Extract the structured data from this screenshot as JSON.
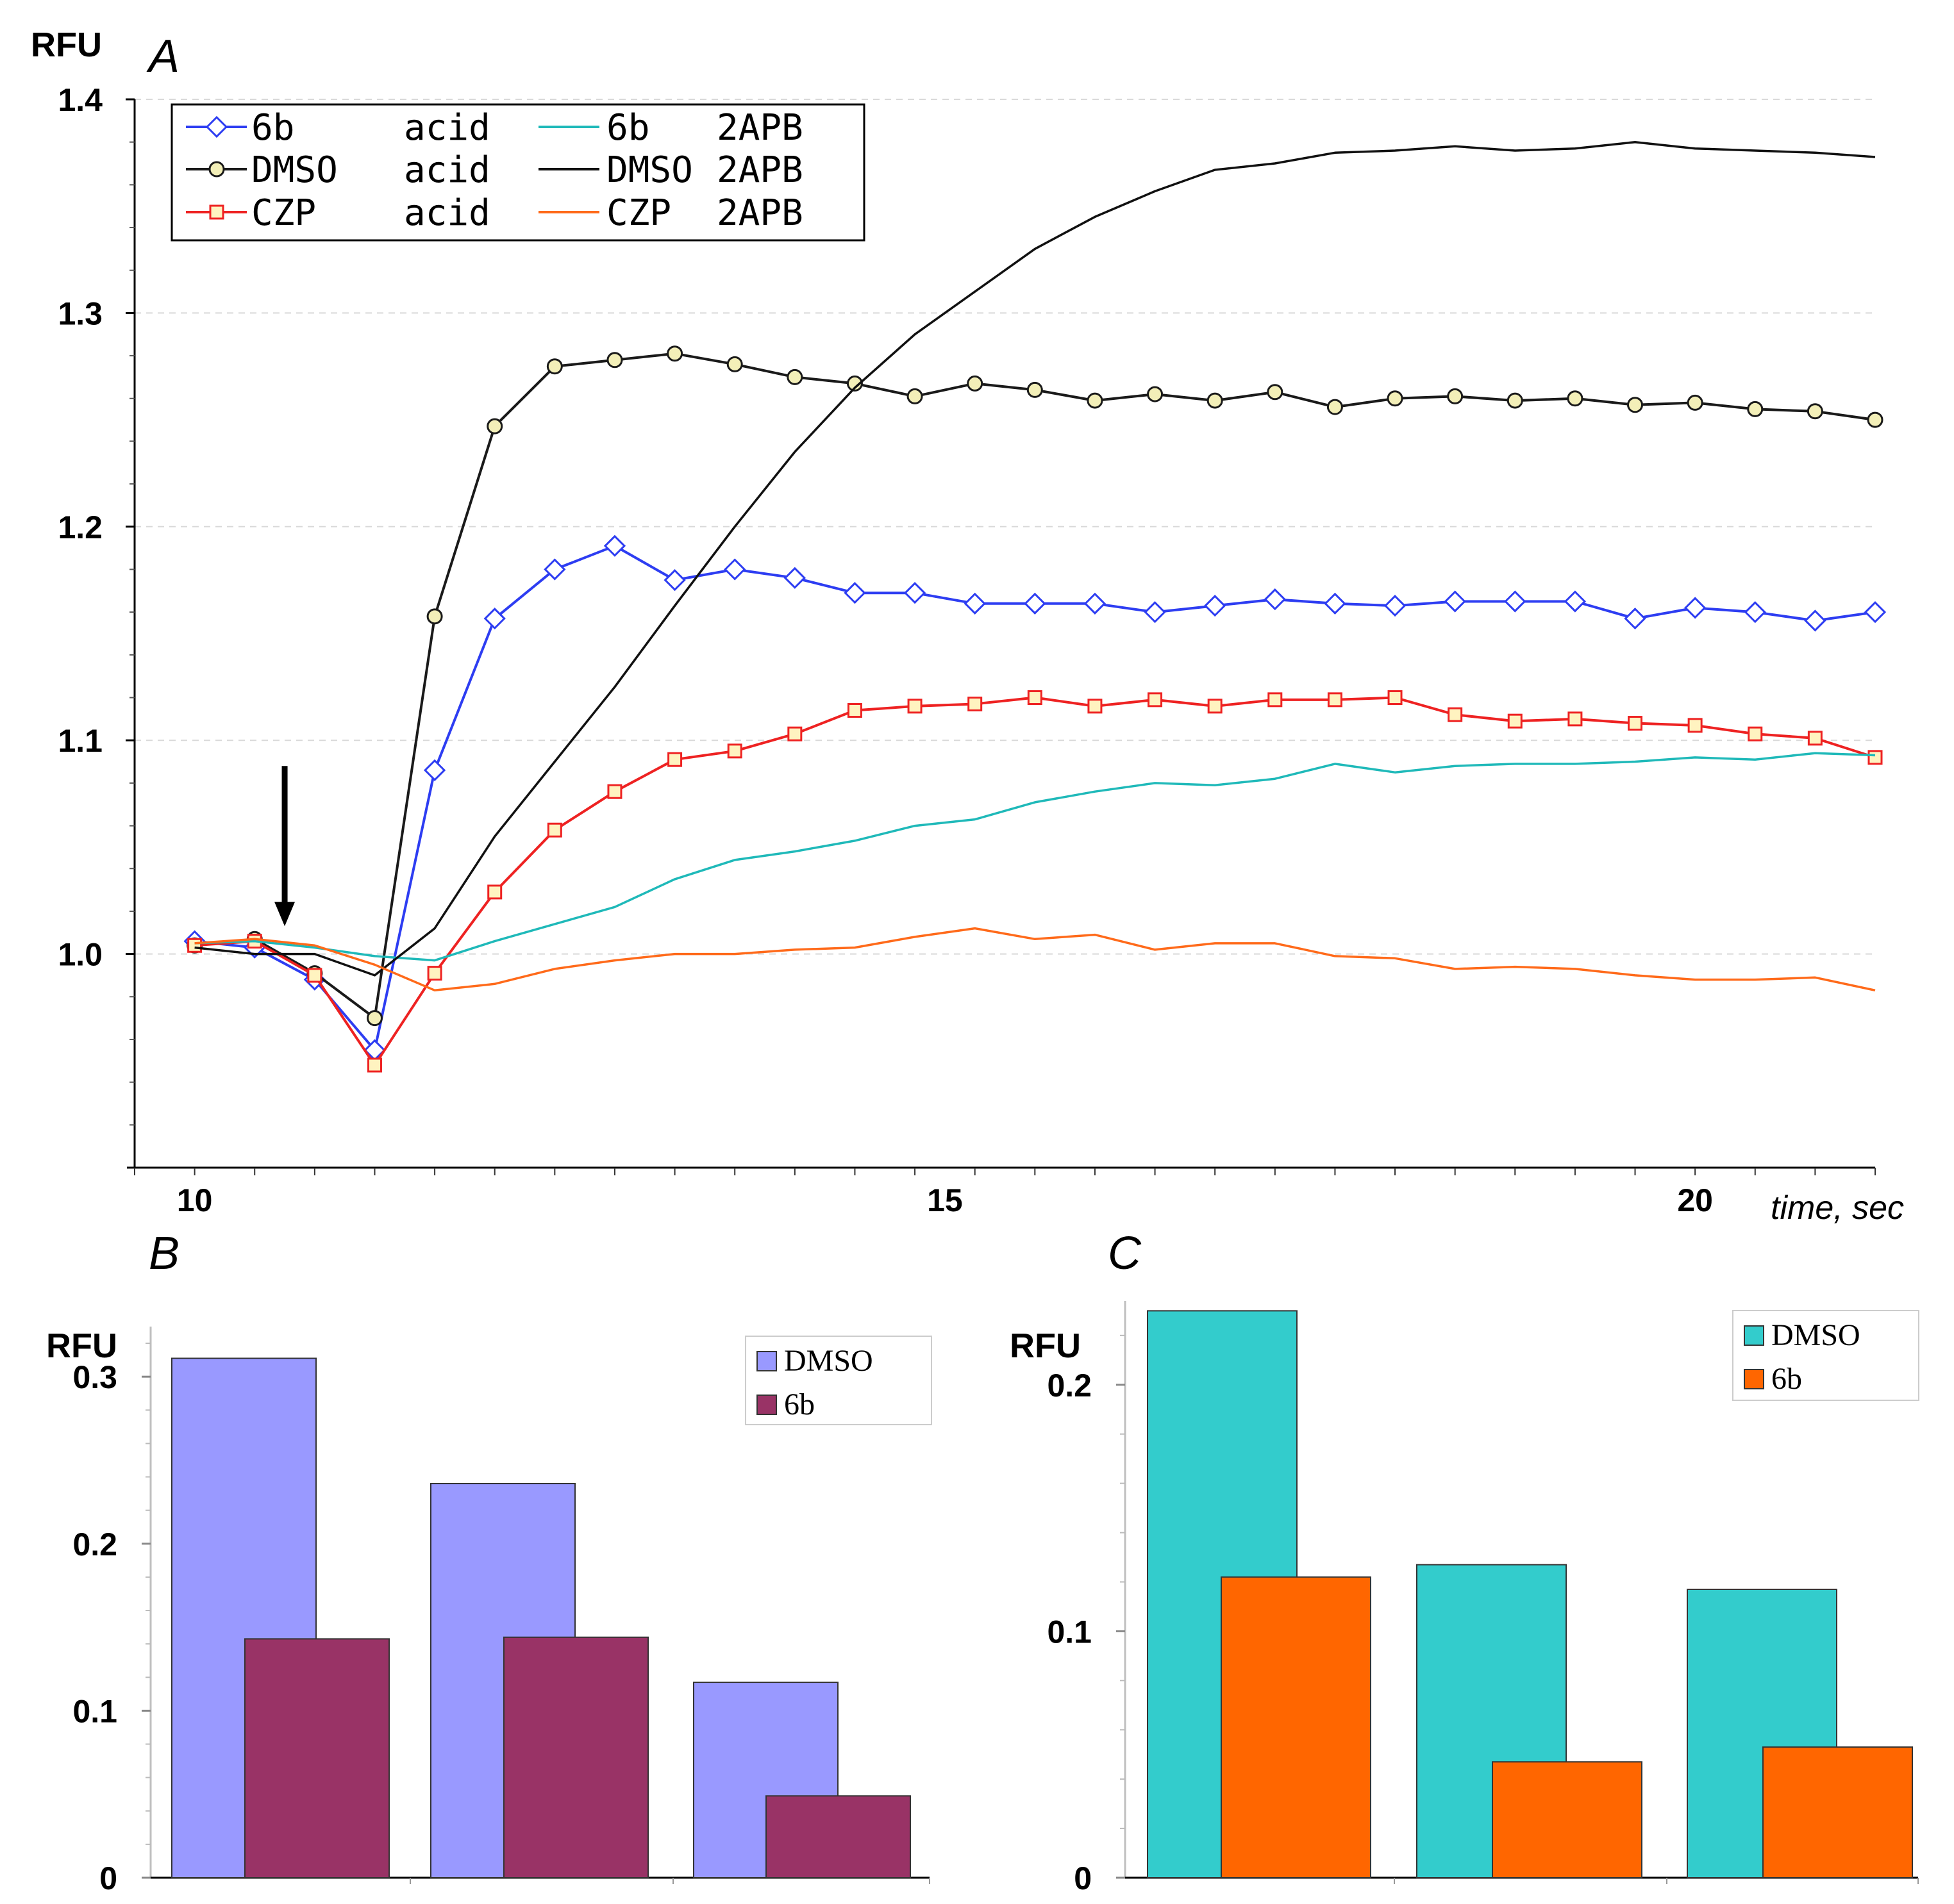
{
  "figure_labels": {
    "a": "A",
    "b": "B",
    "c": "C"
  },
  "chart_data": [
    {
      "panel": "A",
      "type": "line",
      "ylabel": "RFU",
      "xlabel": "time, sec",
      "ylim": [
        0.9,
        1.4
      ],
      "xlim": [
        9.6,
        21.2
      ],
      "yticks": [
        "1.0",
        "1.1",
        "1.2",
        "1.3",
        "1.4"
      ],
      "ytick_values": [
        1.0,
        1.1,
        1.2,
        1.3,
        1.4
      ],
      "xticks": [
        "10",
        "15",
        "20"
      ],
      "xtick_values": [
        10,
        15,
        20
      ],
      "grid": true,
      "legend_position": "top-left",
      "legend": [
        {
          "name": "6b",
          "cond": "acid",
          "color": "#2d3df2",
          "marker": "diamond"
        },
        {
          "name": "DMSO",
          "cond": "acid",
          "color": "#1a1a1a",
          "marker": "circle"
        },
        {
          "name": "CZP",
          "cond": "acid",
          "color": "#ee2222",
          "marker": "square"
        },
        {
          "name": "6b",
          "cond": "2APB",
          "color": "#1fb9b9",
          "marker": "none"
        },
        {
          "name": "DMSO",
          "cond": "2APB",
          "color": "#111111",
          "marker": "none"
        },
        {
          "name": "CZP",
          "cond": "2APB",
          "color": "#ff6a1a",
          "marker": "none"
        }
      ],
      "series": [
        {
          "name": "6b acid",
          "color": "#2d3df2",
          "marker": "diamond",
          "markerFill": "#ffffff",
          "x": [
            10,
            10.4,
            10.8,
            11.2,
            11.6,
            12.0,
            12.4,
            12.8,
            13.2,
            13.6,
            14.0,
            14.4,
            14.8,
            15.2,
            15.6,
            16.0,
            16.4,
            16.8,
            17.2,
            17.6,
            18.0,
            18.4,
            18.8,
            19.2,
            19.6,
            20.0,
            20.4,
            20.8,
            21.2
          ],
          "y": [
            1.006,
            1.003,
            0.988,
            0.955,
            1.086,
            1.157,
            1.18,
            1.191,
            1.175,
            1.18,
            1.176,
            1.169,
            1.169,
            1.164,
            1.164,
            1.164,
            1.16,
            1.163,
            1.166,
            1.164,
            1.163,
            1.165,
            1.165,
            1.165,
            1.157,
            1.162,
            1.16,
            1.156,
            1.16
          ]
        },
        {
          "name": "DMSO acid",
          "color": "#1a1a1a",
          "marker": "circle",
          "markerFill": "#f3efb8",
          "x": [
            10,
            10.4,
            10.8,
            11.2,
            11.6,
            12.0,
            12.4,
            12.8,
            13.2,
            13.6,
            14.0,
            14.4,
            14.8,
            15.2,
            15.6,
            16.0,
            16.4,
            16.8,
            17.2,
            17.6,
            18.0,
            18.4,
            18.8,
            19.2,
            19.6,
            20.0,
            20.4,
            20.8,
            21.2
          ],
          "y": [
            1.004,
            1.007,
            0.991,
            0.97,
            1.158,
            1.247,
            1.275,
            1.278,
            1.281,
            1.276,
            1.27,
            1.267,
            1.261,
            1.267,
            1.264,
            1.259,
            1.262,
            1.259,
            1.263,
            1.256,
            1.26,
            1.261,
            1.259,
            1.26,
            1.257,
            1.258,
            1.255,
            1.254,
            1.25
          ]
        },
        {
          "name": "CZP acid",
          "color": "#ee2222",
          "marker": "square",
          "markerFill": "#fff3c0",
          "x": [
            10,
            10.4,
            10.8,
            11.2,
            11.6,
            12.0,
            12.4,
            12.8,
            13.2,
            13.6,
            14.0,
            14.4,
            14.8,
            15.2,
            15.6,
            16.0,
            16.4,
            16.8,
            17.2,
            17.6,
            18.0,
            18.4,
            18.8,
            19.2,
            19.6,
            20.0,
            20.4,
            20.8,
            21.2
          ],
          "y": [
            1.004,
            1.006,
            0.99,
            0.948,
            0.991,
            1.029,
            1.058,
            1.076,
            1.091,
            1.095,
            1.103,
            1.114,
            1.116,
            1.117,
            1.12,
            1.116,
            1.119,
            1.116,
            1.119,
            1.119,
            1.12,
            1.112,
            1.109,
            1.11,
            1.108,
            1.107,
            1.103,
            1.101,
            1.092
          ]
        },
        {
          "name": "6b 2APB",
          "color": "#1fb9b9",
          "marker": "none",
          "x": [
            10,
            10.4,
            10.8,
            11.2,
            11.6,
            12.0,
            12.4,
            12.8,
            13.2,
            13.6,
            14.0,
            14.4,
            14.8,
            15.2,
            15.6,
            16.0,
            16.4,
            16.8,
            17.2,
            17.6,
            18.0,
            18.4,
            18.8,
            19.2,
            19.6,
            20.0,
            20.4,
            20.8,
            21.2
          ],
          "y": [
            1.005,
            1.006,
            1.003,
            0.999,
            0.997,
            1.006,
            1.014,
            1.022,
            1.035,
            1.044,
            1.048,
            1.053,
            1.06,
            1.063,
            1.071,
            1.076,
            1.08,
            1.079,
            1.082,
            1.089,
            1.085,
            1.088,
            1.089,
            1.089,
            1.09,
            1.092,
            1.091,
            1.094,
            1.093
          ]
        },
        {
          "name": "DMSO 2APB",
          "color": "#111111",
          "marker": "none",
          "x": [
            10,
            10.4,
            10.8,
            11.2,
            11.6,
            12.0,
            12.4,
            12.8,
            13.2,
            13.6,
            14.0,
            14.4,
            14.8,
            15.2,
            15.6,
            16.0,
            16.4,
            16.8,
            17.2,
            17.6,
            18.0,
            18.4,
            18.8,
            19.2,
            19.6,
            20.0,
            20.4,
            20.8,
            21.2
          ],
          "y": [
            1.003,
            1.0,
            1.0,
            0.99,
            1.012,
            1.055,
            1.09,
            1.125,
            1.163,
            1.2,
            1.235,
            1.265,
            1.29,
            1.31,
            1.33,
            1.345,
            1.357,
            1.367,
            1.37,
            1.375,
            1.376,
            1.378,
            1.376,
            1.377,
            1.38,
            1.377,
            1.376,
            1.375,
            1.373
          ]
        },
        {
          "name": "CZP 2APB",
          "color": "#ff6a1a",
          "marker": "none",
          "x": [
            10,
            10.4,
            10.8,
            11.2,
            11.6,
            12.0,
            12.4,
            12.8,
            13.2,
            13.6,
            14.0,
            14.4,
            14.8,
            15.2,
            15.6,
            16.0,
            16.4,
            16.8,
            17.2,
            17.6,
            18.0,
            18.4,
            18.8,
            19.2,
            19.6,
            20.0,
            20.4,
            20.8,
            21.2
          ],
          "y": [
            1.005,
            1.007,
            1.004,
            0.995,
            0.983,
            0.986,
            0.993,
            0.997,
            1.0,
            1.0,
            1.002,
            1.003,
            1.008,
            1.012,
            1.007,
            1.009,
            1.002,
            1.005,
            1.005,
            0.999,
            0.998,
            0.993,
            0.994,
            0.993,
            0.99,
            0.988,
            0.988,
            0.989,
            0.983
          ]
        }
      ],
      "annotation": {
        "type": "arrow",
        "x": 10.6,
        "y_from": 1.088,
        "y_to": 1.013,
        "direction": "down"
      }
    },
    {
      "panel": "B",
      "type": "bar",
      "ylabel": "RFU",
      "ylim": [
        0,
        0.33
      ],
      "yticks": [
        "0",
        "0.1",
        "0.2",
        "0.3"
      ],
      "ytick_values": [
        0,
        0.1,
        0.2,
        0.3
      ],
      "categories": [
        "",
        "",
        ""
      ],
      "legend_position": "top-right",
      "series": [
        {
          "name": "DMSO",
          "color": "#9999ff",
          "values": [
            0.311,
            0.236,
            0.117
          ]
        },
        {
          "name": "6b",
          "color": "#993366",
          "values": [
            0.143,
            0.144,
            0.049
          ]
        }
      ]
    },
    {
      "panel": "C",
      "type": "bar",
      "ylabel": "RFU",
      "ylim": [
        0,
        0.234
      ],
      "yticks": [
        "0",
        "0.1",
        "0.2"
      ],
      "ytick_values": [
        0,
        0.1,
        0.2
      ],
      "categories": [
        "",
        "",
        ""
      ],
      "legend_position": "top-right",
      "series": [
        {
          "name": "DMSO",
          "color": "#33cccc",
          "values": [
            0.23,
            0.127,
            0.117
          ]
        },
        {
          "name": "6b",
          "color": "#ff6600",
          "values": [
            0.122,
            0.047,
            0.053
          ]
        }
      ]
    }
  ]
}
